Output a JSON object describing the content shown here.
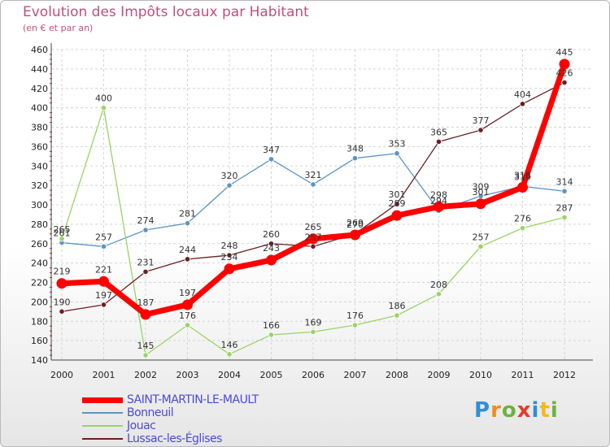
{
  "title": "Evolution des Impôts locaux par Habitant",
  "subtitle": "(en € et par an)",
  "logo": {
    "text": "Proxiti",
    "colors": [
      "#2f8fd8",
      "#f28c1e",
      "#6db33f",
      "#e03c31",
      "#2f8fd8",
      "#f2b81e",
      "#6db33f"
    ]
  },
  "chart_data": {
    "type": "line",
    "x": [
      "2000",
      "2001",
      "2002",
      "2003",
      "2004",
      "2005",
      "2006",
      "2007",
      "2008",
      "2009",
      "2010",
      "2011",
      "2012"
    ],
    "ylim": [
      140,
      460
    ],
    "yticks": [
      140,
      160,
      180,
      200,
      220,
      240,
      260,
      280,
      300,
      320,
      340,
      360,
      380,
      400,
      420,
      440,
      460
    ],
    "grid": true,
    "legend_position": "bottom-left",
    "series": [
      {
        "name": "SAINT-MARTIN-LE-MAULT",
        "color": "#ff0000",
        "values": [
          219,
          221,
          187,
          197,
          234,
          243,
          265,
          269,
          289,
          298,
          301,
          318,
          445
        ]
      },
      {
        "name": "Bonneuil",
        "color": "#5b93c8",
        "values": [
          261,
          257,
          274,
          281,
          320,
          347,
          321,
          348,
          353,
          294,
          309,
          319,
          314
        ]
      },
      {
        "name": "Jouac",
        "color": "#99d465",
        "values": [
          265,
          400,
          145,
          176,
          146,
          166,
          169,
          176,
          186,
          208,
          257,
          276,
          287
        ]
      },
      {
        "name": "Lussac-les-Églises",
        "color": "#6b1f24",
        "values": [
          190,
          197,
          231,
          244,
          248,
          260,
          257,
          270,
          301,
          365,
          377,
          404,
          426
        ]
      }
    ]
  }
}
